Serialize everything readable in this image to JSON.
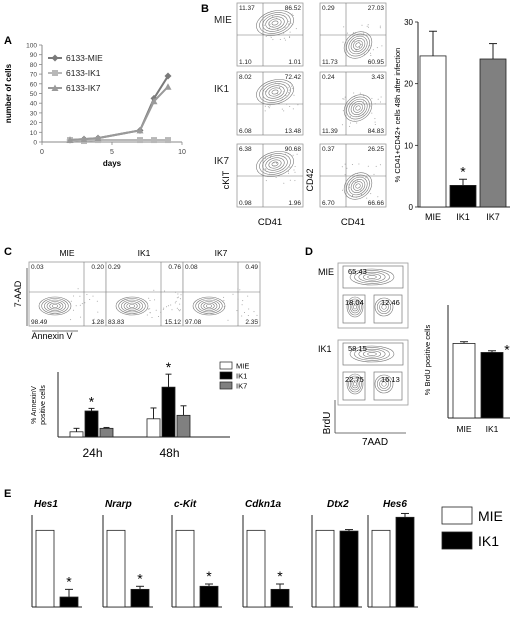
{
  "panels": {
    "A": "A",
    "B": "B",
    "C": "C",
    "D": "D",
    "E": "E"
  },
  "colors": {
    "mie_line": "#7a7a7a",
    "ik1_line": "#b8b8b8",
    "ik7_line": "#9a9a9a",
    "ik1_bar": "#000000",
    "ik7_bar": "#808080",
    "mie_bar": "#ffffff"
  },
  "chart_data": [
    {
      "id": "A",
      "type": "line",
      "ylabel": "number of cells",
      "xlabel": "days",
      "xlim": [
        0,
        10
      ],
      "ylim": [
        0,
        100
      ],
      "xticks": [
        0,
        5,
        10
      ],
      "yticks": [
        0,
        10,
        20,
        30,
        40,
        50,
        60,
        70,
        80,
        90,
        100
      ],
      "series": [
        {
          "name": "6133-MIE",
          "x": [
            2,
            3,
            4,
            7,
            8,
            9
          ],
          "y": [
            2,
            3,
            4,
            12,
            45,
            68
          ]
        },
        {
          "name": "6133-IK1",
          "x": [
            2,
            3,
            4,
            7,
            8,
            9
          ],
          "y": [
            2,
            1,
            2,
            2,
            2,
            2
          ]
        },
        {
          "name": "6133-IK7",
          "x": [
            2,
            3,
            4,
            7,
            8,
            9
          ],
          "y": [
            2,
            3,
            4,
            12,
            42,
            57
          ]
        }
      ]
    },
    {
      "id": "B",
      "type": "bar",
      "ylabel": "% CD41+CD42+ cells 48h after infection",
      "ylim": [
        0,
        30
      ],
      "yticks": [
        0,
        10,
        20,
        30
      ],
      "categories": [
        "MIE",
        "IK1",
        "IK7"
      ],
      "values": [
        24.5,
        3.5,
        24
      ],
      "errors": [
        4,
        1,
        2.5
      ],
      "significance": [
        "",
        "*",
        ""
      ]
    },
    {
      "id": "C",
      "type": "bar",
      "ylabel": "% AnnexinV positive cells",
      "ylim": [
        0,
        15
      ],
      "categories": [
        "24h",
        "48h"
      ],
      "series": [
        {
          "name": "MIE",
          "values": [
            1.2,
            4.2
          ],
          "errors": [
            0.8,
            2.5
          ]
        },
        {
          "name": "IK1",
          "values": [
            6,
            11.5
          ],
          "errors": [
            0.6,
            3
          ]
        },
        {
          "name": "IK7",
          "values": [
            2,
            5
          ],
          "errors": [
            0.2,
            2.2
          ]
        }
      ],
      "significance": [
        [
          "",
          "*",
          ""
        ],
        [
          "",
          "*",
          ""
        ]
      ]
    },
    {
      "id": "D",
      "type": "bar",
      "ylabel": "% BrdU positive cells",
      "ylim": [
        0,
        100
      ],
      "categories": [
        "MIE",
        "IK1"
      ],
      "values": [
        66,
        58
      ],
      "errors": [
        1.5,
        1.5
      ],
      "significance": [
        "",
        "*"
      ]
    },
    {
      "id": "E",
      "type": "bar",
      "legend": [
        "MIE",
        "IK1"
      ],
      "ylim": [
        0,
        1.2
      ],
      "genes": [
        {
          "name": "Hes1",
          "values": [
            1,
            0.13
          ],
          "errors": [
            0,
            0.1
          ],
          "sig": "*"
        },
        {
          "name": "Nrarp",
          "values": [
            1,
            0.23
          ],
          "errors": [
            0,
            0.04
          ],
          "sig": "*"
        },
        {
          "name": "c-Kit",
          "values": [
            1,
            0.27
          ],
          "errors": [
            0,
            0.03
          ],
          "sig": "*"
        },
        {
          "name": "Cdkn1a",
          "values": [
            1,
            0.23
          ],
          "errors": [
            0,
            0.07
          ],
          "sig": "*"
        },
        {
          "name": "Dtx2",
          "values": [
            1,
            0.99
          ],
          "errors": [
            0,
            0.02
          ],
          "sig": ""
        },
        {
          "name": "Hes6",
          "values": [
            1,
            1.17
          ],
          "errors": [
            0,
            0.05
          ],
          "sig": ""
        }
      ]
    }
  ],
  "facs": {
    "B_rows": [
      {
        "name": "MIE",
        "ckit": [
          "11.37",
          "86.52",
          "1.10",
          "1.01"
        ],
        "cd42": [
          "0.29",
          "27.03",
          "11.73",
          "60.95"
        ]
      },
      {
        "name": "IK1",
        "ckit": [
          "8.02",
          "72.42",
          "6.08",
          "13.48"
        ],
        "cd42": [
          "0.24",
          "3.43",
          "11.39",
          "84.83"
        ]
      },
      {
        "name": "IK7",
        "ckit": [
          "6.38",
          "90.68",
          "0.98",
          "1.96"
        ],
        "cd42": [
          "0.37",
          "26.25",
          "6.70",
          "66.66"
        ]
      }
    ],
    "B_axes": {
      "ckit_y": "cKIT",
      "cd42_y": "CD42",
      "x": "CD41"
    },
    "C_plots": [
      {
        "name": "MIE",
        "q": [
          "0.03",
          "0.20",
          "98.49",
          "1.28"
        ]
      },
      {
        "name": "IK1",
        "q": [
          "0.29",
          "0.76",
          "83.83",
          "15.12"
        ]
      },
      {
        "name": "IK7",
        "q": [
          "0.08",
          "0.49",
          "97.08",
          "2.35"
        ]
      }
    ],
    "C_axes": {
      "y": "7-AAD",
      "x": "Annexin V"
    },
    "D_plots": [
      {
        "name": "MIE",
        "q": [
          "65.43",
          "18.04",
          "12.46"
        ]
      },
      {
        "name": "IK1",
        "q": [
          "58.15",
          "22.75",
          "16.13"
        ]
      }
    ],
    "D_axes": {
      "y": "BrdU",
      "x": "7AAD"
    }
  }
}
